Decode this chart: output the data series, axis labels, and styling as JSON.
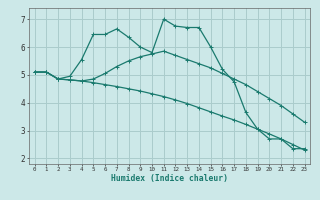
{
  "title": "",
  "xlabel": "Humidex (Indice chaleur)",
  "bg_color": "#cce8e8",
  "grid_color": "#aacccc",
  "line_color": "#1a7a6e",
  "ylim": [
    1.8,
    7.4
  ],
  "xlim": [
    -0.5,
    23.5
  ],
  "yticks": [
    2,
    3,
    4,
    5,
    6,
    7
  ],
  "xticks": [
    0,
    1,
    2,
    3,
    4,
    5,
    6,
    7,
    8,
    9,
    10,
    11,
    12,
    13,
    14,
    15,
    16,
    17,
    18,
    19,
    20,
    21,
    22,
    23
  ],
  "line1_x": [
    0,
    1,
    2,
    3,
    4,
    5,
    6,
    7,
    8,
    9,
    10,
    11,
    12,
    13,
    14,
    15,
    16,
    17,
    18,
    19,
    20,
    21,
    22,
    23
  ],
  "line1_y": [
    5.1,
    5.1,
    4.85,
    4.95,
    5.55,
    6.45,
    6.45,
    6.65,
    6.35,
    6.0,
    5.8,
    7.0,
    6.75,
    6.7,
    6.7,
    6.0,
    5.2,
    4.75,
    3.65,
    3.05,
    2.7,
    2.7,
    2.35,
    2.35
  ],
  "line2_x": [
    0,
    1,
    2,
    3,
    4,
    5,
    6,
    7,
    8,
    9,
    10,
    11,
    12,
    13,
    14,
    15,
    16,
    17,
    18,
    19,
    20,
    21,
    22,
    23
  ],
  "line2_y": [
    5.1,
    5.1,
    4.85,
    4.82,
    4.78,
    4.85,
    5.05,
    5.3,
    5.5,
    5.65,
    5.75,
    5.85,
    5.7,
    5.55,
    5.4,
    5.25,
    5.05,
    4.85,
    4.65,
    4.4,
    4.15,
    3.9,
    3.6,
    3.3
  ],
  "line3_x": [
    0,
    1,
    2,
    3,
    4,
    5,
    6,
    7,
    8,
    9,
    10,
    11,
    12,
    13,
    14,
    15,
    16,
    17,
    18,
    19,
    20,
    21,
    22,
    23
  ],
  "line3_y": [
    5.1,
    5.1,
    4.85,
    4.82,
    4.78,
    4.72,
    4.65,
    4.58,
    4.5,
    4.42,
    4.32,
    4.22,
    4.1,
    3.97,
    3.82,
    3.67,
    3.52,
    3.38,
    3.22,
    3.05,
    2.88,
    2.7,
    2.5,
    2.3
  ]
}
